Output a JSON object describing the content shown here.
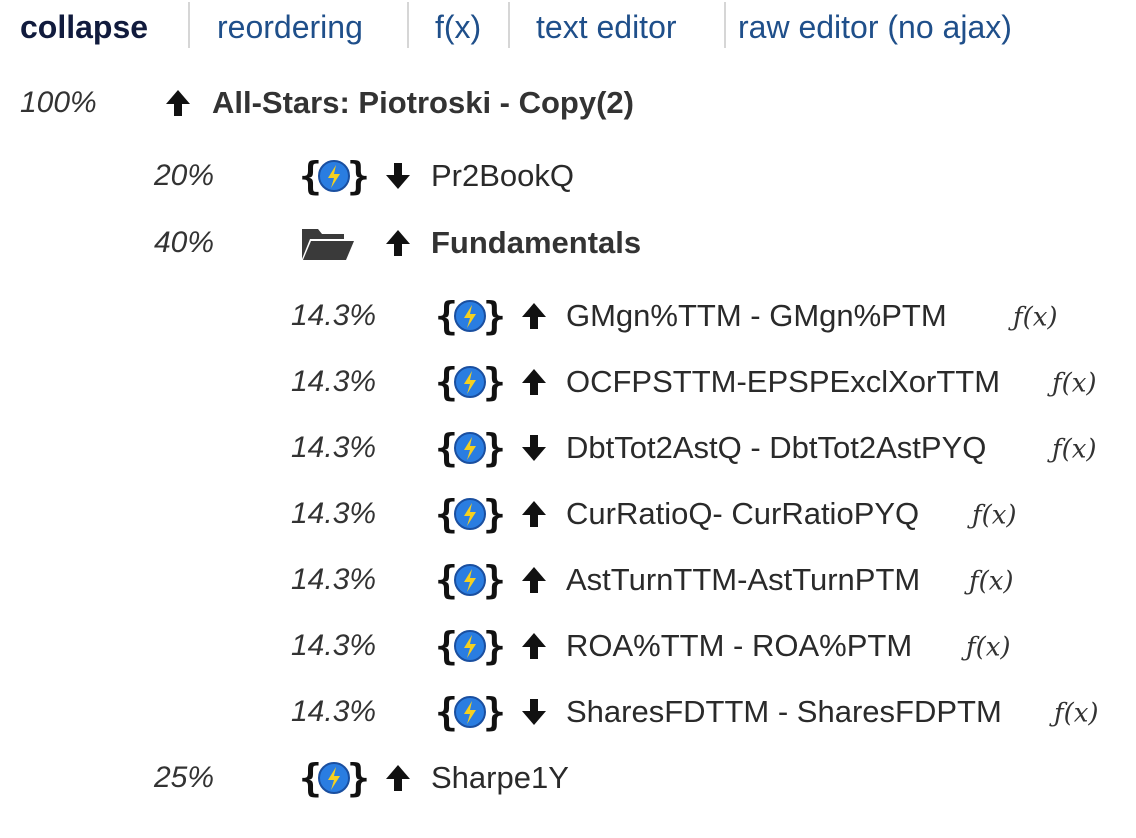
{
  "tabs": [
    {
      "label": "collapse",
      "active": true
    },
    {
      "label": "reordering"
    },
    {
      "label": "f(x)"
    },
    {
      "label": "text editor"
    },
    {
      "label": "raw editor (no ajax)"
    }
  ],
  "tree": {
    "root": {
      "weight": "100%",
      "direction": "up",
      "label": "All-Stars: Piotroski - Copy(2)"
    },
    "nodes": [
      {
        "weight": "20%",
        "icon": "formula-node-icon",
        "direction": "down",
        "label": "Pr2BookQ"
      },
      {
        "weight": "40%",
        "icon": "folder-icon",
        "direction": "up",
        "label": "Fundamentals"
      },
      {
        "weight": "14.3%",
        "icon": "formula-node-icon",
        "direction": "up",
        "label": "GMgn%TTM - GMgn%PTM",
        "fx": "ƒ(x)"
      },
      {
        "weight": "14.3%",
        "icon": "formula-node-icon",
        "direction": "up",
        "label": "OCFPSTTM-EPSPExclXorTTM",
        "fx": "ƒ(x)"
      },
      {
        "weight": "14.3%",
        "icon": "formula-node-icon",
        "direction": "down",
        "label": "DbtTot2AstQ - DbtTot2AstPYQ",
        "fx": "ƒ(x)"
      },
      {
        "weight": "14.3%",
        "icon": "formula-node-icon",
        "direction": "up",
        "label": "CurRatioQ- CurRatioPYQ",
        "fx": "ƒ(x)"
      },
      {
        "weight": "14.3%",
        "icon": "formula-node-icon",
        "direction": "up",
        "label": "AstTurnTTM-AstTurnPTM",
        "fx": "ƒ(x)"
      },
      {
        "weight": "14.3%",
        "icon": "formula-node-icon",
        "direction": "up",
        "label": "ROA%TTM - ROA%PTM",
        "fx": "ƒ(x)"
      },
      {
        "weight": "14.3%",
        "icon": "formula-node-icon",
        "direction": "down",
        "label": "SharesFDTTM - SharesFDPTM",
        "fx": "ƒ(x)"
      },
      {
        "weight": "25%",
        "icon": "formula-node-icon",
        "direction": "up",
        "label": "Sharpe1Y"
      }
    ]
  }
}
